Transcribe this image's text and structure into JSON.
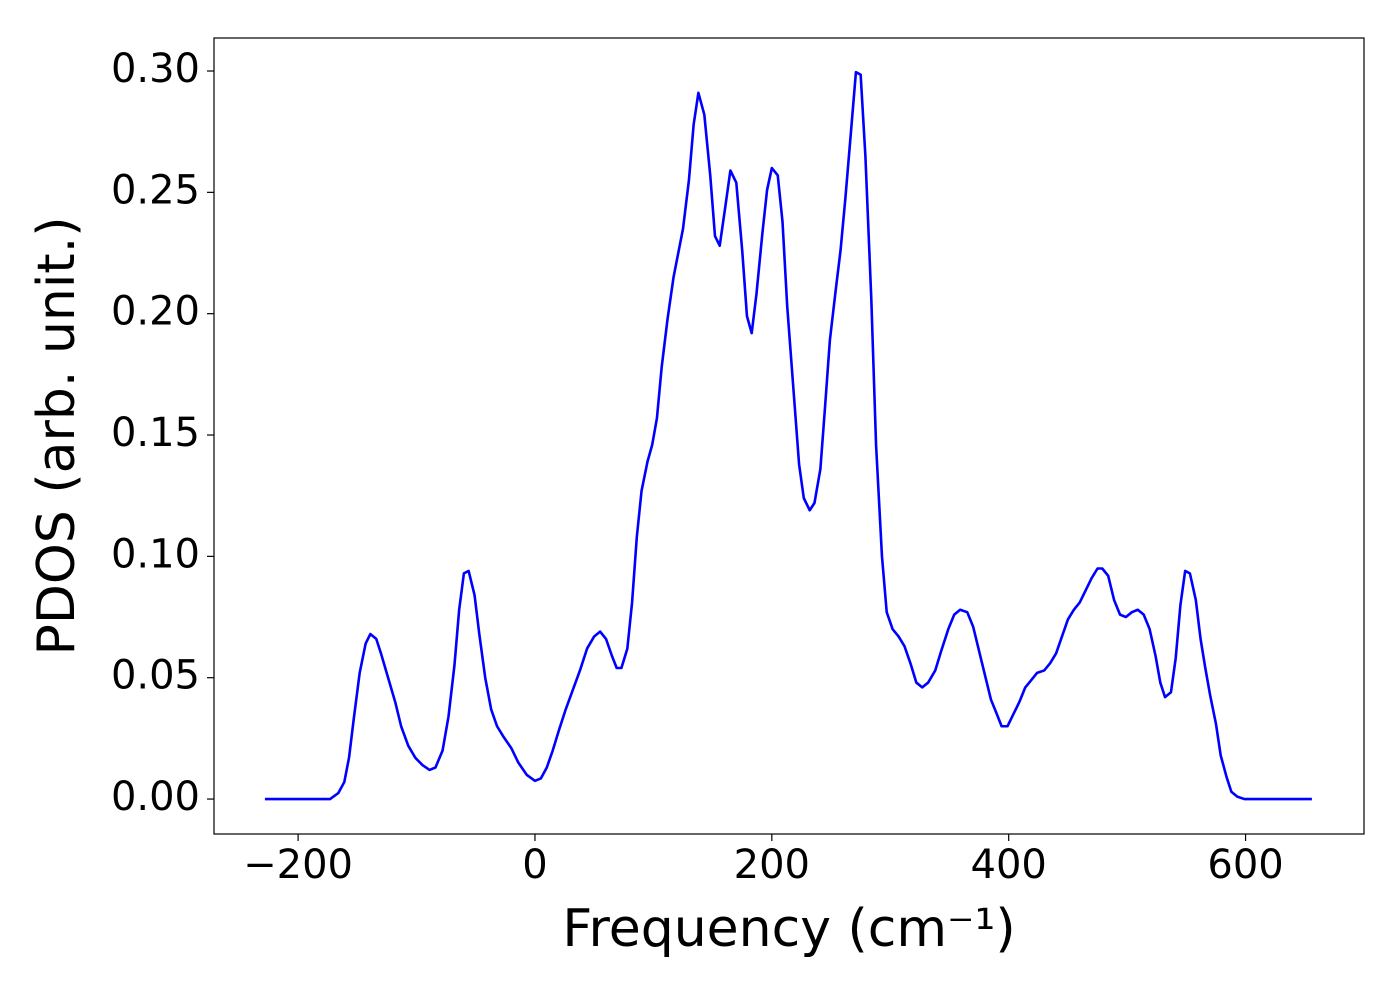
{
  "chart_data": {
    "type": "line",
    "xlabel": "Frequency (cm⁻¹)",
    "ylabel": "PDOS (arb. unit.)",
    "color": "#0000ff",
    "x": [
      -228,
      -173,
      -166,
      -161,
      -157,
      -153,
      -148,
      -143,
      -139,
      -134,
      -130,
      -124,
      -118,
      -113,
      -107,
      -101,
      -95,
      -89,
      -84,
      -78,
      -73,
      -68,
      -64,
      -60,
      -56,
      -51,
      -47,
      -42,
      -37,
      -32,
      -27,
      -20,
      -14,
      -7,
      0,
      5,
      10,
      15,
      20,
      26,
      32,
      38,
      44,
      50,
      55,
      60,
      65,
      69,
      73,
      78,
      82,
      86,
      90,
      95,
      99,
      103,
      107,
      112,
      117,
      125,
      130,
      134,
      138,
      143,
      148,
      152,
      156,
      161,
      165,
      170,
      175,
      179,
      183,
      187,
      192,
      196,
      200,
      205,
      209,
      213,
      219,
      223,
      227,
      232,
      236,
      241,
      245,
      249,
      254,
      258,
      262,
      267,
      271,
      275,
      279,
      284,
      288,
      293,
      297,
      302,
      307,
      312,
      317,
      322,
      327,
      332,
      338,
      343,
      349,
      354,
      359,
      365,
      370,
      375,
      380,
      385,
      390,
      394,
      399,
      404,
      409,
      414,
      419,
      424,
      430,
      435,
      440,
      445,
      450,
      455,
      460,
      465,
      470,
      475,
      479,
      484,
      489,
      494,
      499,
      504,
      509,
      514,
      519,
      524,
      528,
      532,
      537,
      541,
      545,
      549,
      553,
      558,
      562,
      566,
      570,
      575,
      579,
      584,
      588,
      593,
      599,
      656
    ],
    "values": [
      0,
      0,
      0.0025,
      0.007,
      0.017,
      0.033,
      0.052,
      0.064,
      0.068,
      0.066,
      0.06,
      0.05,
      0.04,
      0.03,
      0.022,
      0.017,
      0.014,
      0.012,
      0.013,
      0.02,
      0.034,
      0.055,
      0.078,
      0.093,
      0.094,
      0.084,
      0.068,
      0.05,
      0.037,
      0.03,
      0.026,
      0.021,
      0.015,
      0.01,
      0.0075,
      0.0085,
      0.013,
      0.02,
      0.028,
      0.037,
      0.045,
      0.053,
      0.062,
      0.067,
      0.069,
      0.066,
      0.059,
      0.054,
      0.054,
      0.062,
      0.081,
      0.108,
      0.127,
      0.139,
      0.146,
      0.157,
      0.178,
      0.198,
      0.215,
      0.235,
      0.255,
      0.278,
      0.291,
      0.282,
      0.257,
      0.232,
      0.228,
      0.245,
      0.259,
      0.254,
      0.226,
      0.199,
      0.192,
      0.208,
      0.233,
      0.251,
      0.26,
      0.257,
      0.238,
      0.203,
      0.164,
      0.138,
      0.124,
      0.119,
      0.122,
      0.136,
      0.162,
      0.189,
      0.21,
      0.226,
      0.247,
      0.276,
      0.2995,
      0.2985,
      0.265,
      0.206,
      0.146,
      0.1,
      0.077,
      0.07,
      0.067,
      0.063,
      0.056,
      0.048,
      0.046,
      0.048,
      0.053,
      0.061,
      0.07,
      0.076,
      0.078,
      0.077,
      0.071,
      0.061,
      0.051,
      0.041,
      0.035,
      0.03,
      0.03,
      0.035,
      0.04,
      0.046,
      0.049,
      0.052,
      0.053,
      0.056,
      0.06,
      0.067,
      0.074,
      0.078,
      0.081,
      0.086,
      0.091,
      0.095,
      0.095,
      0.092,
      0.082,
      0.076,
      0.075,
      0.077,
      0.078,
      0.076,
      0.07,
      0.059,
      0.048,
      0.042,
      0.044,
      0.058,
      0.08,
      0.094,
      0.093,
      0.082,
      0.066,
      0.054,
      0.043,
      0.031,
      0.018,
      0.009,
      0.003,
      0.001,
      0,
      0
    ],
    "xlim": [
      -271,
      700
    ],
    "xticks": [
      {
        "value": -200,
        "label": "−200"
      },
      0,
      200,
      400,
      600
    ],
    "ylim": [
      -0.0144,
      0.3136
    ],
    "yticks": [
      {
        "value": 0,
        "label": "0.00"
      },
      0.05,
      {
        "value": 0.1,
        "label": "0.10"
      },
      0.15,
      {
        "value": 0.2,
        "label": "0.20"
      },
      0.25,
      {
        "value": 0.3,
        "label": "0.30"
      }
    ],
    "grid": false
  }
}
